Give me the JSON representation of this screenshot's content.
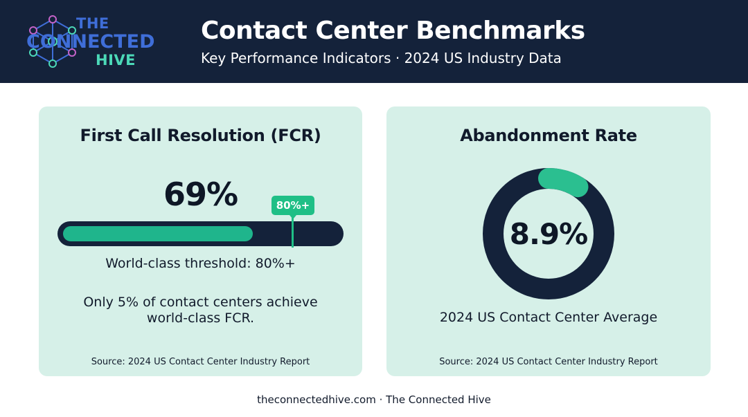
{
  "colors": {
    "header_bg": "#14223a",
    "card_bg": "#d6f0e8",
    "accent": "#1fb58c",
    "dark": "#14223a"
  },
  "logo": {
    "line1": "THE",
    "line2": "CONNECTED",
    "line3": "HIVE",
    "icon": "network-hexagon-icon"
  },
  "header": {
    "title": "Contact Center Benchmarks",
    "subtitle": "Key Performance Indicators · 2024 US Industry Data"
  },
  "fcr": {
    "title": "First Call Resolution (FCR)",
    "value_label": "69%",
    "value_fraction": 0.69,
    "target_label": "80%+",
    "target_fraction": 0.8,
    "threshold": "World-class threshold: 80%+",
    "note": "Only 5% of contact centers achieve world-class FCR.",
    "source": "Source: 2024 US Contact Center Industry Report"
  },
  "abandonment": {
    "title": "Abandonment Rate",
    "value_label": "8.9%",
    "value_fraction": 0.089,
    "caption": "2024 US Contact Center Average",
    "source": "Source: 2024 US Contact Center Industry Report"
  },
  "footer": {
    "text": "theconnectedhive.com · The Connected Hive"
  }
}
